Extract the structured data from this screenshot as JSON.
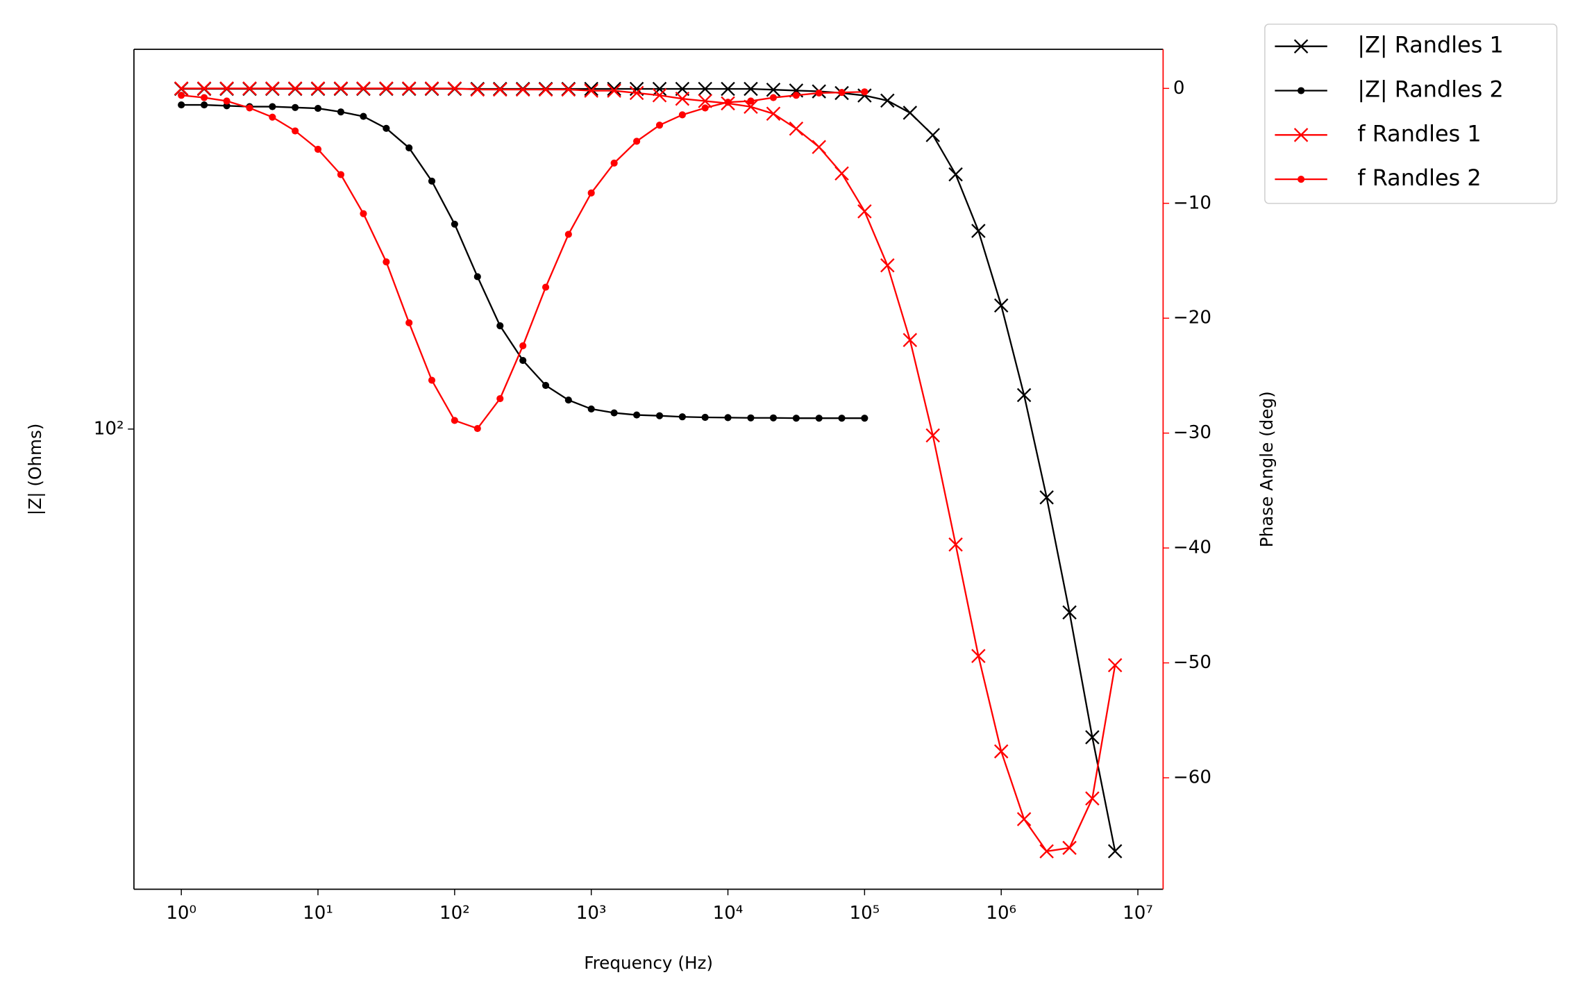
{
  "chart_data": {
    "type": "line",
    "xlabel": "Frequency (Hz)",
    "ylabel": "|Z| (Ohms)",
    "y2label": "Phase Angle (deg)",
    "xscale": "log",
    "yscale": "log",
    "xlim": [
      0.45,
      15300000
    ],
    "ylim": [
      19.1,
      392
    ],
    "y2lim": [
      -69.7,
      3.4
    ],
    "xticks": [
      {
        "value": 1,
        "label": "10⁰"
      },
      {
        "value": 10,
        "label": "10¹"
      },
      {
        "value": 100,
        "label": "10²"
      },
      {
        "value": 1000,
        "label": "10³"
      },
      {
        "value": 10000,
        "label": "10⁴"
      },
      {
        "value": 100000,
        "label": "10⁵"
      },
      {
        "value": 1000000,
        "label": "10⁶"
      },
      {
        "value": 10000000,
        "label": "10⁷"
      }
    ],
    "yticks": [
      {
        "value": 100,
        "label": "10²"
      }
    ],
    "y2ticks": [
      0,
      {
        "value": -10,
        "label": "−10"
      },
      {
        "value": -20,
        "label": "−20"
      },
      {
        "value": -30,
        "label": "−30"
      },
      {
        "value": -40,
        "label": "−40"
      },
      {
        "value": -50,
        "label": "−50"
      },
      {
        "value": -60,
        "label": "−60"
      }
    ],
    "y2color": "#ff0000",
    "legend": "outside upper right",
    "series": [
      {
        "name": "|Z| Randles 1",
        "color": "#000000",
        "marker": "x",
        "axis": "y",
        "x": [
          1,
          1.47,
          2.15,
          3.16,
          4.64,
          6.81,
          10,
          14.7,
          21.5,
          31.6,
          46.4,
          68.1,
          100,
          147,
          215,
          316,
          464,
          681,
          1000,
          1470,
          2150,
          3160,
          4640,
          6810,
          10000,
          14700,
          21500,
          31600,
          46400,
          68100,
          100000,
          147000,
          215000,
          316000,
          464000,
          681000,
          1000000,
          1470000,
          2150000,
          3160000,
          4640000,
          6810000
        ],
        "values": [
          340,
          340,
          340,
          340,
          340,
          340,
          340,
          340,
          340,
          340,
          340,
          340,
          340,
          340,
          340,
          340,
          340,
          340,
          340,
          340,
          340,
          340,
          340,
          340,
          340,
          340,
          339,
          338,
          337,
          335,
          332,
          326,
          312,
          288,
          250,
          204,
          156,
          113,
          78.2,
          51.7,
          33.0,
          21.9
        ]
      },
      {
        "name": "|Z| Randles 2",
        "color": "#000000",
        "marker": "o",
        "axis": "y",
        "x": [
          1,
          1.47,
          2.15,
          3.16,
          4.64,
          6.81,
          10,
          14.7,
          21.5,
          31.6,
          46.4,
          68.1,
          100,
          147,
          215,
          316,
          464,
          681,
          1000,
          1470,
          2150,
          3160,
          4640,
          6810,
          10000,
          14700,
          21500,
          31600,
          46400,
          68100,
          100000
        ],
        "values": [
          321,
          321,
          320,
          319,
          319,
          318,
          317,
          313,
          308,
          295,
          275,
          244,
          209,
          173,
          145,
          128,
          117,
          111,
          107.5,
          106,
          105.2,
          104.9,
          104.5,
          104.3,
          104.2,
          104.1,
          104.1,
          104,
          104,
          104,
          104
        ]
      },
      {
        "name": "f Randles 1",
        "color": "#ff0000",
        "marker": "x",
        "axis": "y2",
        "x": [
          1,
          1.47,
          2.15,
          3.16,
          4.64,
          6.81,
          10,
          14.7,
          21.5,
          31.6,
          46.4,
          68.1,
          100,
          147,
          215,
          316,
          464,
          681,
          1000,
          1470,
          2150,
          3160,
          4640,
          6810,
          10000,
          14700,
          21500,
          31600,
          46400,
          68100,
          100000,
          147000,
          215000,
          316000,
          464000,
          681000,
          1000000,
          1470000,
          2150000,
          3160000,
          4640000,
          6810000
        ],
        "values": [
          0,
          0,
          0,
          0,
          0,
          0,
          0,
          0,
          0,
          0,
          0,
          0,
          0,
          -0.1,
          -0.1,
          -0.1,
          -0.1,
          -0.1,
          -0.2,
          -0.2,
          -0.4,
          -0.6,
          -0.9,
          -1.1,
          -1.3,
          -1.6,
          -2.2,
          -3.5,
          -5.1,
          -7.4,
          -10.7,
          -15.4,
          -21.9,
          -30.2,
          -39.7,
          -49.4,
          -57.7,
          -63.6,
          -66.4,
          -66.1,
          -61.8,
          -50.2
        ]
      },
      {
        "name": "f Randles 2",
        "color": "#ff0000",
        "marker": "o",
        "axis": "y2",
        "x": [
          1,
          1.47,
          2.15,
          3.16,
          4.64,
          6.81,
          10,
          14.7,
          21.5,
          31.6,
          46.4,
          68.1,
          100,
          147,
          215,
          316,
          464,
          681,
          1000,
          1470,
          2150,
          3160,
          4640,
          6810,
          10000,
          14700,
          21500,
          31600,
          46400,
          68100,
          100000
        ],
        "values": [
          -0.6,
          -0.8,
          -1.1,
          -1.7,
          -2.5,
          -3.7,
          -5.3,
          -7.5,
          -10.9,
          -15.1,
          -20.4,
          -25.4,
          -28.9,
          -29.6,
          -27.0,
          -22.4,
          -17.3,
          -12.7,
          -9.1,
          -6.5,
          -4.6,
          -3.2,
          -2.3,
          -1.7,
          -1.2,
          -1.1,
          -0.8,
          -0.6,
          -0.4,
          -0.35,
          -0.3
        ]
      }
    ]
  }
}
